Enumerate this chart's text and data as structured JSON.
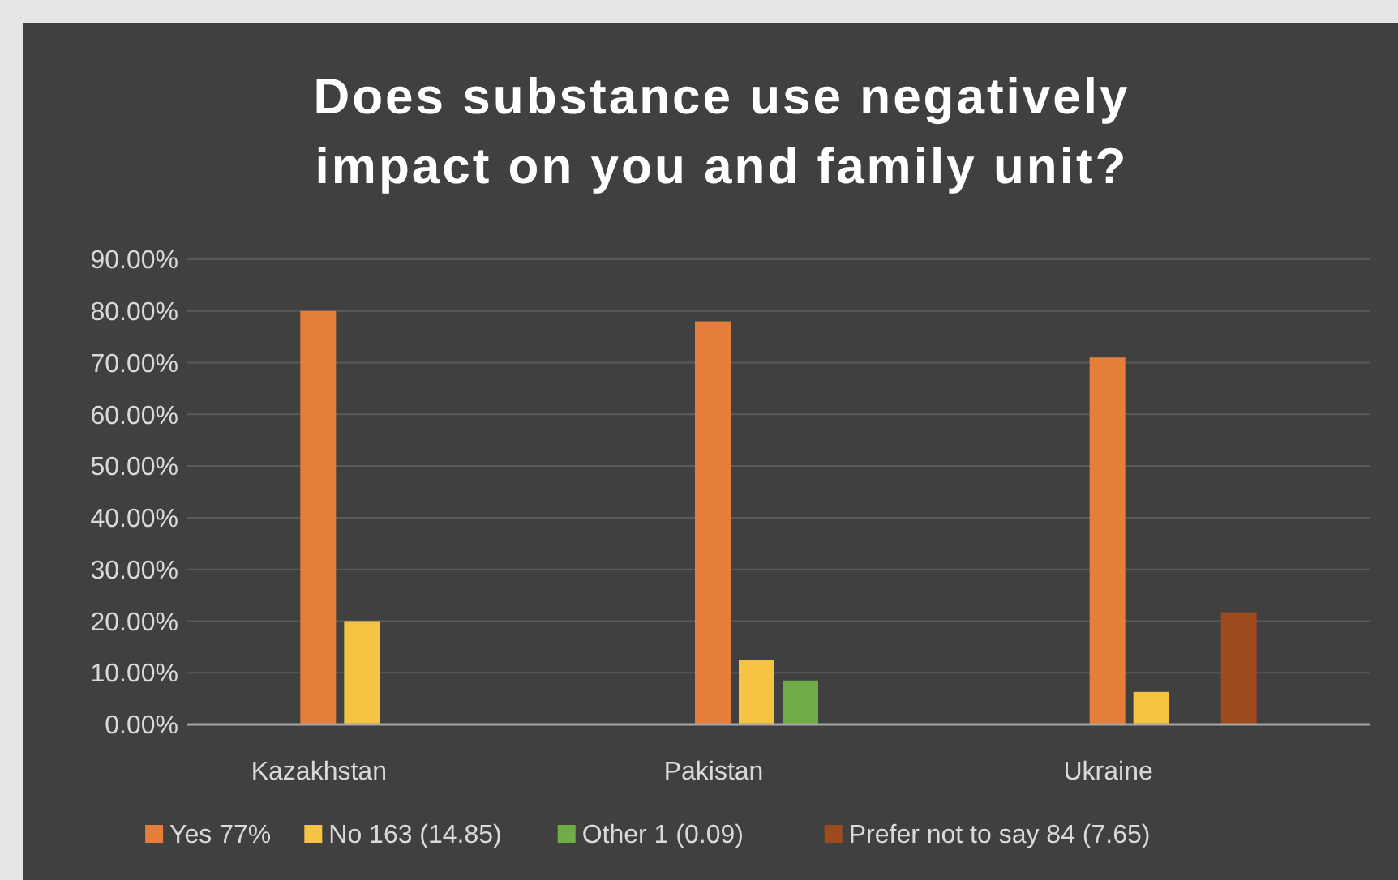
{
  "chart_data": {
    "type": "bar",
    "title": "Does substance use negatively impact on you and family unit?",
    "categories": [
      "Kazakhstan",
      "Pakistan",
      "Ukraine"
    ],
    "series": [
      {
        "name": "Yes 77%",
        "color": "#e57e3a",
        "values": [
          80,
          78,
          71
        ]
      },
      {
        "name": "No 163 (14.85)",
        "color": "#f5c443",
        "values": [
          20,
          12.4,
          6.3
        ]
      },
      {
        "name": "Other  1 (0.09)",
        "color": "#70ad47",
        "values": [
          0,
          8.5,
          0
        ]
      },
      {
        "name": "Prefer not to say 84 (7.65)",
        "color": "#9c4a1e",
        "values": [
          0,
          0,
          21.7
        ]
      }
    ],
    "ylim": [
      0,
      90
    ],
    "yticks": [
      {
        "value": 0,
        "label": "0.00%"
      },
      {
        "value": 10,
        "label": "10.00%"
      },
      {
        "value": 20,
        "label": "20.00%"
      },
      {
        "value": 30,
        "label": "30.00%"
      },
      {
        "value": 40,
        "label": "40.00%"
      },
      {
        "value": 50,
        "label": "50.00%"
      },
      {
        "value": 60,
        "label": "60.00%"
      },
      {
        "value": 70,
        "label": "70.00%"
      },
      {
        "value": 80,
        "label": "80.00%"
      },
      {
        "value": 90,
        "label": "90.00%"
      }
    ],
    "grid": "y",
    "legend": "bottom"
  }
}
